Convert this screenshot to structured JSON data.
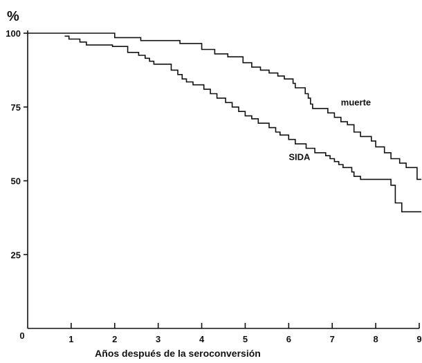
{
  "chart_data": {
    "type": "line",
    "title": "",
    "ylabel": "%",
    "xlabel": "Años después de la seroconversión",
    "xlim": [
      0,
      9
    ],
    "ylim": [
      0,
      100
    ],
    "x_ticks": [
      1,
      2,
      3,
      4,
      5,
      6,
      7,
      8,
      9
    ],
    "y_ticks": [
      25,
      50,
      75,
      100
    ],
    "origin_label": "0",
    "grid": false,
    "legend": "none",
    "series": [
      {
        "name": "muerte",
        "points": [
          [
            0,
            100
          ],
          [
            2.0,
            100
          ],
          [
            2.0,
            98.5
          ],
          [
            2.6,
            98.5
          ],
          [
            2.6,
            97.5
          ],
          [
            3.5,
            97.5
          ],
          [
            3.5,
            96.5
          ],
          [
            4.0,
            96.5
          ],
          [
            4.0,
            94.5
          ],
          [
            4.3,
            94.5
          ],
          [
            4.3,
            93
          ],
          [
            4.6,
            93
          ],
          [
            4.6,
            92
          ],
          [
            4.95,
            92
          ],
          [
            4.95,
            90
          ],
          [
            5.15,
            90
          ],
          [
            5.15,
            88.5
          ],
          [
            5.35,
            88.5
          ],
          [
            5.35,
            87.5
          ],
          [
            5.55,
            87.5
          ],
          [
            5.55,
            86.5
          ],
          [
            5.75,
            86.5
          ],
          [
            5.75,
            85.5
          ],
          [
            5.9,
            85.5
          ],
          [
            5.9,
            84.5
          ],
          [
            6.1,
            84.5
          ],
          [
            6.1,
            83
          ],
          [
            6.15,
            83
          ],
          [
            6.15,
            81.5
          ],
          [
            6.38,
            81.5
          ],
          [
            6.38,
            79.5
          ],
          [
            6.45,
            79.5
          ],
          [
            6.45,
            78
          ],
          [
            6.5,
            78
          ],
          [
            6.5,
            76
          ],
          [
            6.55,
            76
          ],
          [
            6.55,
            74.5
          ],
          [
            6.9,
            74.5
          ],
          [
            6.9,
            73
          ],
          [
            7.05,
            73
          ],
          [
            7.05,
            71.5
          ],
          [
            7.2,
            71.5
          ],
          [
            7.2,
            70
          ],
          [
            7.35,
            70
          ],
          [
            7.35,
            69
          ],
          [
            7.5,
            69
          ],
          [
            7.5,
            66.5
          ],
          [
            7.65,
            66.5
          ],
          [
            7.65,
            65
          ],
          [
            7.9,
            65
          ],
          [
            7.9,
            63.5
          ],
          [
            8.0,
            63.5
          ],
          [
            8.0,
            61.5
          ],
          [
            8.2,
            61.5
          ],
          [
            8.2,
            59.5
          ],
          [
            8.35,
            59.5
          ],
          [
            8.35,
            57.5
          ],
          [
            8.55,
            57.5
          ],
          [
            8.55,
            56
          ],
          [
            8.7,
            56
          ],
          [
            8.7,
            54.5
          ],
          [
            8.95,
            54.5
          ],
          [
            8.95,
            50.5
          ],
          [
            9.05,
            50.5
          ]
        ]
      },
      {
        "name": "SIDA",
        "points": [
          [
            0.85,
            99
          ],
          [
            0.95,
            99
          ],
          [
            0.95,
            98
          ],
          [
            1.2,
            98
          ],
          [
            1.2,
            97
          ],
          [
            1.35,
            97
          ],
          [
            1.35,
            96
          ],
          [
            1.95,
            96
          ],
          [
            1.95,
            95.5
          ],
          [
            2.3,
            95.5
          ],
          [
            2.3,
            93.5
          ],
          [
            2.55,
            93.5
          ],
          [
            2.55,
            92.5
          ],
          [
            2.7,
            92.5
          ],
          [
            2.7,
            91.5
          ],
          [
            2.8,
            91.5
          ],
          [
            2.8,
            90.5
          ],
          [
            2.9,
            90.5
          ],
          [
            2.9,
            89.5
          ],
          [
            3.3,
            89.5
          ],
          [
            3.3,
            87.5
          ],
          [
            3.45,
            87.5
          ],
          [
            3.45,
            86
          ],
          [
            3.55,
            86
          ],
          [
            3.55,
            84.5
          ],
          [
            3.65,
            84.5
          ],
          [
            3.65,
            83.5
          ],
          [
            3.8,
            83.5
          ],
          [
            3.8,
            82.5
          ],
          [
            4.05,
            82.5
          ],
          [
            4.05,
            81
          ],
          [
            4.2,
            81
          ],
          [
            4.2,
            79.5
          ],
          [
            4.35,
            79.5
          ],
          [
            4.35,
            78
          ],
          [
            4.55,
            78
          ],
          [
            4.55,
            76.5
          ],
          [
            4.7,
            76.5
          ],
          [
            4.7,
            75
          ],
          [
            4.85,
            75
          ],
          [
            4.85,
            73.5
          ],
          [
            5.0,
            73.5
          ],
          [
            5.0,
            72
          ],
          [
            5.15,
            72
          ],
          [
            5.15,
            71
          ],
          [
            5.3,
            71
          ],
          [
            5.3,
            69.5
          ],
          [
            5.55,
            69.5
          ],
          [
            5.55,
            68
          ],
          [
            5.7,
            68
          ],
          [
            5.7,
            66.5
          ],
          [
            5.8,
            66.5
          ],
          [
            5.8,
            65.5
          ],
          [
            6.0,
            65.5
          ],
          [
            6.0,
            64
          ],
          [
            6.15,
            64
          ],
          [
            6.15,
            62.5
          ],
          [
            6.4,
            62.5
          ],
          [
            6.4,
            61
          ],
          [
            6.6,
            61
          ],
          [
            6.6,
            59.5
          ],
          [
            6.85,
            59.5
          ],
          [
            6.85,
            58.5
          ],
          [
            6.95,
            58.5
          ],
          [
            6.95,
            57.5
          ],
          [
            7.05,
            57.5
          ],
          [
            7.05,
            56.5
          ],
          [
            7.15,
            56.5
          ],
          [
            7.15,
            55.5
          ],
          [
            7.25,
            55.5
          ],
          [
            7.25,
            54.5
          ],
          [
            7.45,
            54.5
          ],
          [
            7.45,
            53
          ],
          [
            7.5,
            53
          ],
          [
            7.5,
            51.5
          ],
          [
            7.65,
            51.5
          ],
          [
            7.65,
            50.5
          ],
          [
            8.35,
            50.5
          ],
          [
            8.35,
            48.5
          ],
          [
            8.45,
            48.5
          ],
          [
            8.45,
            42.5
          ],
          [
            8.6,
            42.5
          ],
          [
            8.6,
            39.5
          ],
          [
            9.05,
            39.5
          ]
        ]
      }
    ],
    "annotations": [
      {
        "text": "muerte",
        "series": 0,
        "x": 7.2,
        "y": 75.5
      },
      {
        "text": "SIDA",
        "series": 1,
        "x": 6.0,
        "y": 57
      }
    ]
  }
}
